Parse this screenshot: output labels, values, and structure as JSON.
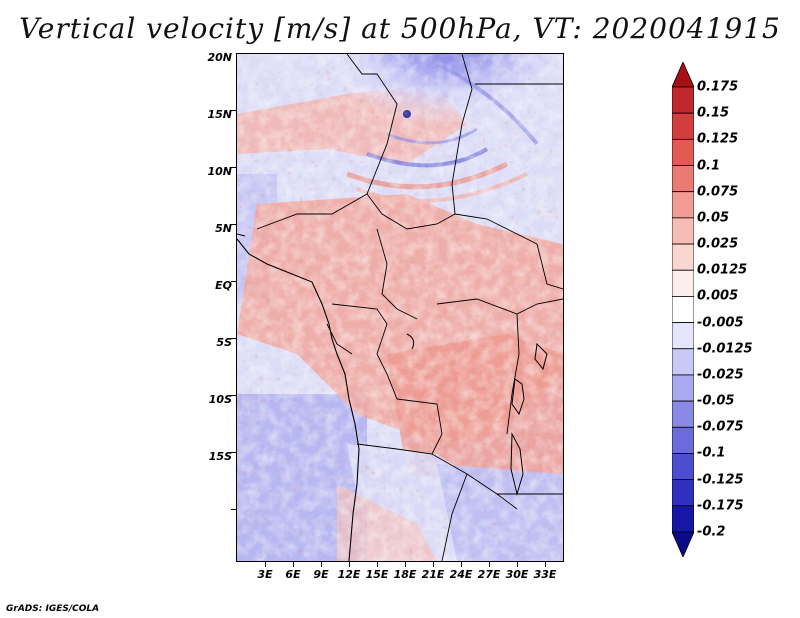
{
  "title": "Vertical velocity [m/s] at 500hPa, VT: 2020041915",
  "credit": "GrADS: IGES/COLA",
  "map": {
    "lat_labels": [
      "20N",
      "15N",
      "10N",
      "5N",
      "EQ",
      "5S",
      "10S",
      "15S"
    ],
    "lon_labels": [
      "3E",
      "6E",
      "9E",
      "12E",
      "15E",
      "18E",
      "21E",
      "24E",
      "27E",
      "30E",
      "33E"
    ]
  },
  "colorbar": {
    "labels": [
      "0.175",
      "0.15",
      "0.125",
      "0.1",
      "0.075",
      "0.05",
      "0.025",
      "0.0125",
      "0.005",
      "-0.005",
      "-0.0125",
      "-0.025",
      "-0.05",
      "-0.075",
      "-0.1",
      "-0.125",
      "-0.175",
      "-0.2"
    ],
    "colors": [
      "#a50f15",
      "#c0282d",
      "#d43d3d",
      "#e35a55",
      "#eb7a72",
      "#f19b92",
      "#f6bdb6",
      "#f9d6d1",
      "#fdeeee",
      "#ffffff",
      "#e4e4fb",
      "#c9c9f5",
      "#a9a9ef",
      "#8a8ae6",
      "#6b6bdc",
      "#4d4dcf",
      "#3030bf",
      "#1717a6",
      "#0b0b8a"
    ]
  }
}
